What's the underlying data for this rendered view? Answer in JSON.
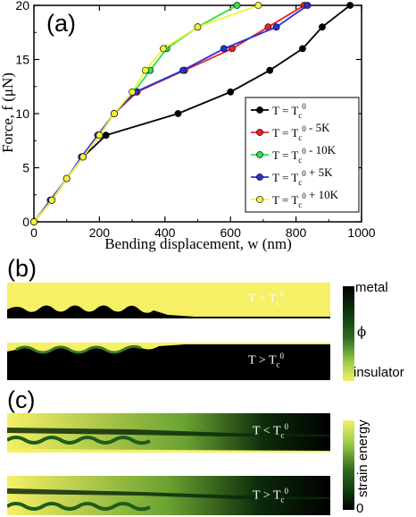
{
  "chart_data": {
    "type": "line",
    "panel_label": "(a)",
    "xlabel": "Bending displacement, w (nm)",
    "ylabel": "Force, f (μN)",
    "xlim": [
      0,
      1000
    ],
    "ylim": [
      0,
      20
    ],
    "xticks": [
      0,
      200,
      400,
      600,
      800,
      1000
    ],
    "yticks": [
      0,
      5,
      10,
      15,
      20
    ],
    "legend_position": "right",
    "series": [
      {
        "name": "T = Tc0",
        "color": "#000000",
        "x": [
          0,
          55,
          100,
          150,
          220,
          440,
          600,
          720,
          820,
          880,
          965
        ],
        "y": [
          0,
          2,
          4,
          6,
          8,
          10,
          12,
          14,
          16,
          18,
          20
        ]
      },
      {
        "name": "T = Tc0 - 5K",
        "color": "#e8202a",
        "x": [
          0,
          55,
          100,
          150,
          200,
          245,
          315,
          460,
          605,
          715,
          825
        ],
        "y": [
          0,
          2,
          4,
          6,
          8,
          10,
          12,
          14,
          16,
          18,
          20
        ]
      },
      {
        "name": "T = Tc0 - 10K",
        "color": "#2de04a",
        "x": [
          0,
          55,
          100,
          150,
          195,
          245,
          305,
          355,
          405,
          500,
          620
        ],
        "y": [
          0,
          2,
          4,
          6,
          8,
          10,
          12,
          14,
          16,
          18,
          20
        ]
      },
      {
        "name": "T = Tc0 + 5K",
        "color": "#2233dd",
        "x": [
          0,
          50,
          100,
          145,
          195,
          245,
          310,
          455,
          580,
          740,
          835
        ],
        "y": [
          0,
          2,
          4,
          6,
          8,
          10,
          12,
          14,
          16,
          18,
          20
        ]
      },
      {
        "name": "T = Tc0 + 10K",
        "color": "#f2f23a",
        "x": [
          0,
          55,
          100,
          150,
          200,
          245,
          300,
          340,
          395,
          500,
          685
        ],
        "y": [
          0,
          2,
          4,
          6,
          8,
          10,
          12,
          14,
          16,
          18,
          20
        ]
      }
    ]
  },
  "panel_b": {
    "label": "(b)",
    "top_strip_label": "T < Tc0",
    "bottom_strip_label": "T > Tc0",
    "colorbar_top": "metal",
    "colorbar_mid": "ϕ",
    "colorbar_bottom": "insulator"
  },
  "panel_c": {
    "label": "(c)",
    "top_strip_label": "T < Tc0",
    "bottom_strip_label": "T > Tc0",
    "colorbar_title": "strain energy",
    "colorbar_bottom": "0"
  },
  "colors": {
    "metal": "#000000",
    "insulator": "#f5f065",
    "mid_green": "#1d5e1a"
  }
}
